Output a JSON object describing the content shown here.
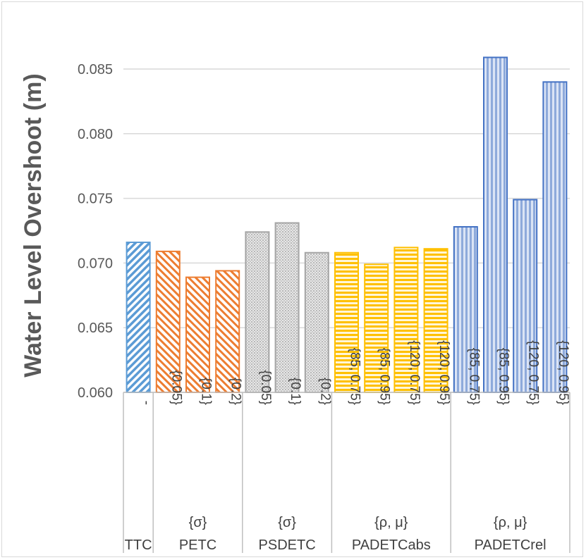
{
  "chart_data": {
    "type": "bar",
    "ylabel": "Water Level Overshoot (m)",
    "ylim": [
      0.06,
      0.088
    ],
    "yticks": [
      "0.060",
      "0.065",
      "0.070",
      "0.075",
      "0.080",
      "0.085"
    ],
    "grid": true,
    "groups": [
      {
        "name": "TTC",
        "param": "",
        "color": "#5b9bd5",
        "pattern": "diag-blue",
        "categories": [
          "-"
        ],
        "values": [
          0.0716
        ]
      },
      {
        "name": "PETC",
        "param": "{σ}",
        "color": "#ed7d31",
        "pattern": "diag-orange",
        "categories": [
          "{0.05}",
          "{0.1}",
          "{0.2}"
        ],
        "values": [
          0.0709,
          0.0689,
          0.0694
        ]
      },
      {
        "name": "PSDETC",
        "param": "{σ}",
        "color": "#a5a5a5",
        "pattern": "dots-gray",
        "categories": [
          "{0.05}",
          "{0.1}",
          "{0.2}"
        ],
        "values": [
          0.0724,
          0.0731,
          0.0708
        ]
      },
      {
        "name": "PADETCabs",
        "param": "{ρ, μ}",
        "color": "#ffc000",
        "pattern": "hlines-yellow",
        "categories": [
          "{85, 0.75}",
          "{85, 0.95}",
          "{120, 0.75}",
          "{120, 0.95}"
        ],
        "values": [
          0.0708,
          0.0699,
          0.0712,
          0.0711
        ]
      },
      {
        "name": "PADETCrel",
        "param": "{ρ, μ}",
        "color": "#4472c4",
        "pattern": "vlines-blue",
        "categories": [
          "{85, 0.75}",
          "{85, 0.95}",
          "{120, 0.75}",
          "{120, 0.95}"
        ],
        "values": [
          0.0728,
          0.0859,
          0.0749,
          0.084
        ]
      }
    ]
  }
}
